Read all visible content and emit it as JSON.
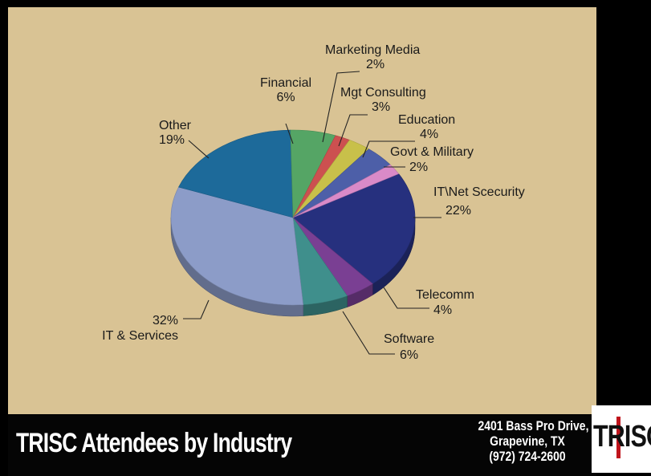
{
  "chart_data": {
    "type": "pie",
    "title": "TRISC Attendees by Industry",
    "slices": [
      {
        "label": "IT\\Net Scecurity",
        "pct_text": "22%",
        "value": 22,
        "color": "#26307e"
      },
      {
        "label": "Telecomm",
        "pct_text": "4%",
        "value": 4,
        "color": "#7a3f93"
      },
      {
        "label": "Software",
        "pct_text": "6%",
        "value": 6,
        "color": "#3f8f8c"
      },
      {
        "label": "IT & Services",
        "pct_text": "32%",
        "value": 32,
        "color": "#8c9cc8"
      },
      {
        "label": "Other",
        "pct_text": "19%",
        "value": 19,
        "color": "#1d6a9a"
      },
      {
        "label": "Financial",
        "pct_text": "6%",
        "value": 6,
        "color": "#55a565"
      },
      {
        "label": "Marketing Media",
        "pct_text": "2%",
        "value": 2,
        "color": "#cc5050"
      },
      {
        "label": "Mgt Consulting",
        "pct_text": "3%",
        "value": 3,
        "color": "#c8c04a"
      },
      {
        "label": "Education",
        "pct_text": "4%",
        "value": 4,
        "color": "#4d5fa8"
      },
      {
        "label": "Govt & Military",
        "pct_text": "2%",
        "value": 2,
        "color": "#d98ac8"
      }
    ]
  },
  "footer": {
    "title": "TRISC Attendees by Industry",
    "address_line1": "2401 Bass Pro Drive,",
    "address_line2": "Grapevine, TX",
    "phone": "(972) 724-2600"
  },
  "logo": {
    "text": "TRISC"
  }
}
